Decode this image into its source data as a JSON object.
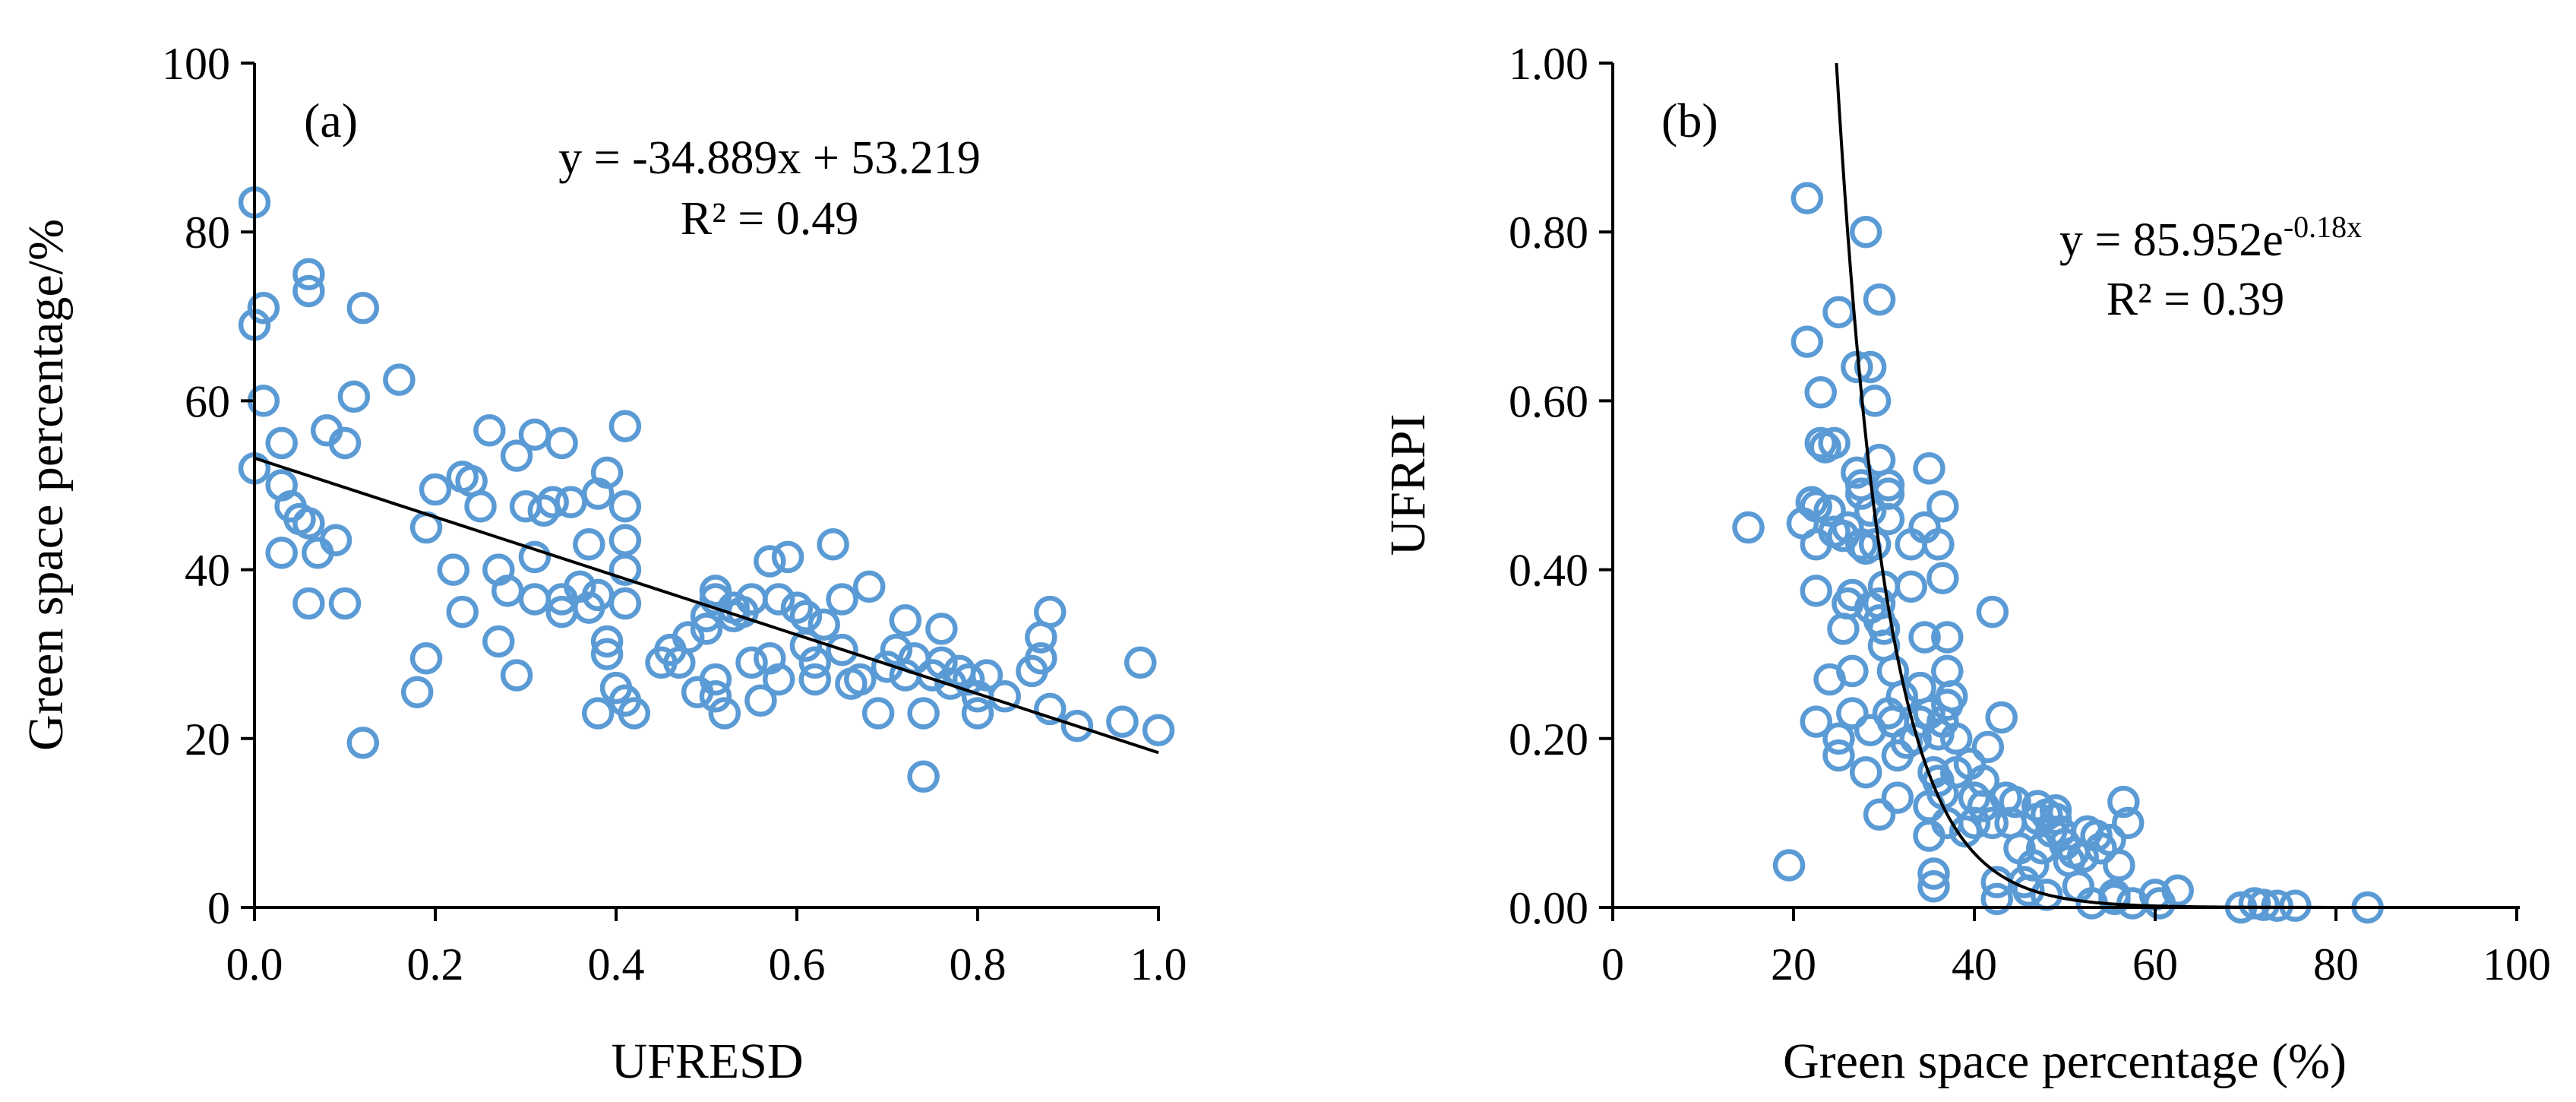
{
  "chart_data": [
    {
      "type": "scatter",
      "panel_label": "(a)",
      "xlabel": "UFRESD",
      "ylabel": "Green space percentage/%",
      "xlim": [
        0.0,
        1.0
      ],
      "ylim": [
        0,
        100
      ],
      "xticks": [
        "0.0",
        "0.2",
        "0.4",
        "0.6",
        "0.8",
        "1.0"
      ],
      "yticks": [
        "0",
        "20",
        "40",
        "60",
        "80",
        "100"
      ],
      "equation": "y = -34.889x + 53.219",
      "r2": "R² = 0.49",
      "trendline": {
        "type": "linear",
        "slope": -34.889,
        "intercept": 53.219
      },
      "point_color": "#5b9bd5",
      "points": [
        [
          0.0,
          83.5
        ],
        [
          0.0,
          69.0
        ],
        [
          0.01,
          71.0
        ],
        [
          0.01,
          60.0
        ],
        [
          0.0,
          52.0
        ],
        [
          0.03,
          55.0
        ],
        [
          0.03,
          50.0
        ],
        [
          0.04,
          47.5
        ],
        [
          0.05,
          46.0
        ],
        [
          0.03,
          42.0
        ],
        [
          0.06,
          73.0
        ],
        [
          0.06,
          75.0
        ],
        [
          0.06,
          45.5
        ],
        [
          0.07,
          42.0
        ],
        [
          0.06,
          36.0
        ],
        [
          0.08,
          56.5
        ],
        [
          0.1,
          55.0
        ],
        [
          0.09,
          43.5
        ],
        [
          0.1,
          36.0
        ],
        [
          0.11,
          60.5
        ],
        [
          0.12,
          71.0
        ],
        [
          0.16,
          62.5
        ],
        [
          0.12,
          19.5
        ],
        [
          0.19,
          45.0
        ],
        [
          0.2,
          49.5
        ],
        [
          0.19,
          29.5
        ],
        [
          0.18,
          25.5
        ],
        [
          0.22,
          40.0
        ],
        [
          0.23,
          51.0
        ],
        [
          0.24,
          50.5
        ],
        [
          0.23,
          35.0
        ],
        [
          0.25,
          47.5
        ],
        [
          0.26,
          56.5
        ],
        [
          0.27,
          40.0
        ],
        [
          0.27,
          31.5
        ],
        [
          0.28,
          37.5
        ],
        [
          0.29,
          27.5
        ],
        [
          0.29,
          53.5
        ],
        [
          0.3,
          47.5
        ],
        [
          0.31,
          56.0
        ],
        [
          0.31,
          41.5
        ],
        [
          0.31,
          36.5
        ],
        [
          0.32,
          47.0
        ],
        [
          0.33,
          48.0
        ],
        [
          0.34,
          36.5
        ],
        [
          0.34,
          35.0
        ],
        [
          0.34,
          55.0
        ],
        [
          0.35,
          48.0
        ],
        [
          0.36,
          38.0
        ],
        [
          0.37,
          43.0
        ],
        [
          0.38,
          37.0
        ],
        [
          0.37,
          35.5
        ],
        [
          0.38,
          49.0
        ],
        [
          0.39,
          51.5
        ],
        [
          0.39,
          31.5
        ],
        [
          0.39,
          30.0
        ],
        [
          0.38,
          23.0
        ],
        [
          0.41,
          57.0
        ],
        [
          0.41,
          47.5
        ],
        [
          0.41,
          43.5
        ],
        [
          0.41,
          40.0
        ],
        [
          0.41,
          36.0
        ],
        [
          0.4,
          26.0
        ],
        [
          0.41,
          24.5
        ],
        [
          0.42,
          23.0
        ],
        [
          0.45,
          29.0
        ],
        [
          0.46,
          30.5
        ],
        [
          0.47,
          29.0
        ],
        [
          0.48,
          32.0
        ],
        [
          0.49,
          25.5
        ],
        [
          0.5,
          33.0
        ],
        [
          0.5,
          34.5
        ],
        [
          0.51,
          37.5
        ],
        [
          0.51,
          36.5
        ],
        [
          0.51,
          27.0
        ],
        [
          0.51,
          25.0
        ],
        [
          0.52,
          23.0
        ],
        [
          0.53,
          34.5
        ],
        [
          0.53,
          35.5
        ],
        [
          0.54,
          35.0
        ],
        [
          0.55,
          36.5
        ],
        [
          0.55,
          29.0
        ],
        [
          0.56,
          24.5
        ],
        [
          0.57,
          29.5
        ],
        [
          0.57,
          41.0
        ],
        [
          0.58,
          36.5
        ],
        [
          0.58,
          27.0
        ],
        [
          0.59,
          41.5
        ],
        [
          0.6,
          35.5
        ],
        [
          0.61,
          34.5
        ],
        [
          0.61,
          31.0
        ],
        [
          0.62,
          29.0
        ],
        [
          0.62,
          27.0
        ],
        [
          0.63,
          33.5
        ],
        [
          0.64,
          43.0
        ],
        [
          0.65,
          36.5
        ],
        [
          0.65,
          30.5
        ],
        [
          0.66,
          26.5
        ],
        [
          0.67,
          27.0
        ],
        [
          0.68,
          38.0
        ],
        [
          0.69,
          23.0
        ],
        [
          0.7,
          28.5
        ],
        [
          0.71,
          30.5
        ],
        [
          0.72,
          34.0
        ],
        [
          0.72,
          27.5
        ],
        [
          0.73,
          29.5
        ],
        [
          0.74,
          15.5
        ],
        [
          0.74,
          23.0
        ],
        [
          0.75,
          27.5
        ],
        [
          0.76,
          29.0
        ],
        [
          0.76,
          33.0
        ],
        [
          0.77,
          26.5
        ],
        [
          0.78,
          28.0
        ],
        [
          0.79,
          27.0
        ],
        [
          0.8,
          25.0
        ],
        [
          0.8,
          23.0
        ],
        [
          0.81,
          27.5
        ],
        [
          0.83,
          25.0
        ],
        [
          0.86,
          28.0
        ],
        [
          0.87,
          32.0
        ],
        [
          0.87,
          29.5
        ],
        [
          0.88,
          35.0
        ],
        [
          0.88,
          23.5
        ],
        [
          0.91,
          21.5
        ],
        [
          0.96,
          22.0
        ],
        [
          0.98,
          29.0
        ],
        [
          1.0,
          21.0
        ]
      ]
    },
    {
      "type": "scatter",
      "panel_label": "(b)",
      "xlabel": "Green space percentage (%)",
      "ylabel": "UFRPI",
      "xlim": [
        0,
        100
      ],
      "ylim": [
        0.0,
        1.0
      ],
      "xticks": [
        "0",
        "20",
        "40",
        "60",
        "80",
        "100"
      ],
      "yticks": [
        "0.00",
        "0.20",
        "0.40",
        "0.60",
        "0.80",
        "1.00"
      ],
      "equation_base": "y = 85.952e",
      "equation_exp": "-0.18x",
      "r2": "R² = 0.39",
      "trendline": {
        "type": "exponential",
        "a": 85.952,
        "b": -0.18
      },
      "point_color": "#5b9bd5",
      "points": [
        [
          15.0,
          0.45
        ],
        [
          19.5,
          0.05
        ],
        [
          21.5,
          0.84
        ],
        [
          21.5,
          0.67
        ],
        [
          21.0,
          0.455
        ],
        [
          22.0,
          0.48
        ],
        [
          22.5,
          0.475
        ],
        [
          23.0,
          0.55
        ],
        [
          22.5,
          0.43
        ],
        [
          23.0,
          0.61
        ],
        [
          22.5,
          0.375
        ],
        [
          22.5,
          0.22
        ],
        [
          23.5,
          0.545
        ],
        [
          24.0,
          0.47
        ],
        [
          24.5,
          0.55
        ],
        [
          24.5,
          0.445
        ],
        [
          24.0,
          0.27
        ],
        [
          25.0,
          0.705
        ],
        [
          25.0,
          0.2
        ],
        [
          25.0,
          0.18
        ],
        [
          25.5,
          0.33
        ],
        [
          25.5,
          0.44
        ],
        [
          26.0,
          0.45
        ],
        [
          26.0,
          0.36
        ],
        [
          26.5,
          0.37
        ],
        [
          26.5,
          0.23
        ],
        [
          26.5,
          0.28
        ],
        [
          27.0,
          0.64
        ],
        [
          27.0,
          0.515
        ],
        [
          27.5,
          0.5
        ],
        [
          27.5,
          0.49
        ],
        [
          27.5,
          0.43
        ],
        [
          28.0,
          0.8
        ],
        [
          28.0,
          0.425
        ],
        [
          28.0,
          0.16
        ],
        [
          28.5,
          0.64
        ],
        [
          28.5,
          0.47
        ],
        [
          28.5,
          0.21
        ],
        [
          28.5,
          0.355
        ],
        [
          29.0,
          0.6
        ],
        [
          29.0,
          0.43
        ],
        [
          29.5,
          0.72
        ],
        [
          29.5,
          0.53
        ],
        [
          29.5,
          0.34
        ],
        [
          29.5,
          0.36
        ],
        [
          29.5,
          0.11
        ],
        [
          30.0,
          0.38
        ],
        [
          30.0,
          0.33
        ],
        [
          30.0,
          0.31
        ],
        [
          30.5,
          0.5
        ],
        [
          30.5,
          0.49
        ],
        [
          30.5,
          0.46
        ],
        [
          30.5,
          0.23
        ],
        [
          31.0,
          0.28
        ],
        [
          31.0,
          0.22
        ],
        [
          31.5,
          0.18
        ],
        [
          31.5,
          0.13
        ],
        [
          32.0,
          0.25
        ],
        [
          32.5,
          0.195
        ],
        [
          33.0,
          0.43
        ],
        [
          33.0,
          0.38
        ],
        [
          33.5,
          0.2
        ],
        [
          34.0,
          0.22
        ],
        [
          34.0,
          0.26
        ],
        [
          34.5,
          0.32
        ],
        [
          34.5,
          0.45
        ],
        [
          35.0,
          0.52
        ],
        [
          35.0,
          0.12
        ],
        [
          35.0,
          0.085
        ],
        [
          35.0,
          0.23
        ],
        [
          35.5,
          0.04
        ],
        [
          35.5,
          0.025
        ],
        [
          35.5,
          0.16
        ],
        [
          36.0,
          0.43
        ],
        [
          36.0,
          0.205
        ],
        [
          36.0,
          0.15
        ],
        [
          36.5,
          0.475
        ],
        [
          36.5,
          0.39
        ],
        [
          36.5,
          0.22
        ],
        [
          36.5,
          0.135
        ],
        [
          37.0,
          0.32
        ],
        [
          37.0,
          0.28
        ],
        [
          37.0,
          0.24
        ],
        [
          37.0,
          0.1
        ],
        [
          37.5,
          0.25
        ],
        [
          38.0,
          0.2
        ],
        [
          38.0,
          0.16
        ],
        [
          39.0,
          0.09
        ],
        [
          39.5,
          0.17
        ],
        [
          40.0,
          0.13
        ],
        [
          40.0,
          0.1
        ],
        [
          41.0,
          0.15
        ],
        [
          41.0,
          0.12
        ],
        [
          41.5,
          0.19
        ],
        [
          42.0,
          0.35
        ],
        [
          42.0,
          0.1
        ],
        [
          42.5,
          0.03
        ],
        [
          42.5,
          0.01
        ],
        [
          43.0,
          0.225
        ],
        [
          43.5,
          0.13
        ],
        [
          44.0,
          0.1
        ],
        [
          44.5,
          0.125
        ],
        [
          45.0,
          0.07
        ],
        [
          45.5,
          0.03
        ],
        [
          46.0,
          0.02
        ],
        [
          46.5,
          0.05
        ],
        [
          47.0,
          0.12
        ],
        [
          47.0,
          0.105
        ],
        [
          47.5,
          0.07
        ],
        [
          48.0,
          0.11
        ],
        [
          48.0,
          0.015
        ],
        [
          48.5,
          0.09
        ],
        [
          49.0,
          0.105
        ],
        [
          49.0,
          0.115
        ],
        [
          49.5,
          0.09
        ],
        [
          50.0,
          0.075
        ],
        [
          50.5,
          0.055
        ],
        [
          51.0,
          0.065
        ],
        [
          51.5,
          0.025
        ],
        [
          52.0,
          0.06
        ],
        [
          52.5,
          0.09
        ],
        [
          53.0,
          0.005
        ],
        [
          53.5,
          0.085
        ],
        [
          54.0,
          0.07
        ],
        [
          55.0,
          0.08
        ],
        [
          55.5,
          0.01
        ],
        [
          55.5,
          0.015
        ],
        [
          56.0,
          0.05
        ],
        [
          56.5,
          0.125
        ],
        [
          57.0,
          0.1
        ],
        [
          57.5,
          0.005
        ],
        [
          60.0,
          0.015
        ],
        [
          60.5,
          0.005
        ],
        [
          62.5,
          0.02
        ],
        [
          69.5,
          0.0
        ],
        [
          71.0,
          0.005
        ],
        [
          72.0,
          0.003
        ],
        [
          73.5,
          0.002
        ],
        [
          75.5,
          0.002
        ],
        [
          83.5,
          0.0
        ]
      ]
    }
  ]
}
